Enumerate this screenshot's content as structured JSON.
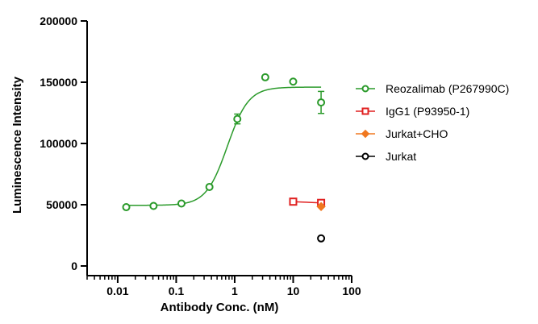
{
  "chart_data": {
    "type": "scatter",
    "xlabel": "Antibody Conc. (nM)",
    "ylabel": "Luminescence Intensity",
    "x_scale": "log",
    "xlim": [
      0.003,
      100
    ],
    "ylim": [
      0,
      200000
    ],
    "x_ticks": [
      0.01,
      0.1,
      1,
      10,
      100
    ],
    "x_tick_labels": [
      "0.01",
      "0.1",
      "1",
      "10",
      "100"
    ],
    "y_ticks": [
      0,
      50000,
      100000,
      150000,
      200000
    ],
    "y_tick_labels": [
      "0",
      "50000",
      "100000",
      "150000",
      "200000"
    ],
    "grid": false,
    "legend_position": "right",
    "series": [
      {
        "name": "Reozalimab (P267990C)",
        "color": "#2a9a2a",
        "marker": "circle",
        "x": [
          0.014,
          0.041,
          0.123,
          0.37,
          1.11,
          3.33,
          10,
          30
        ],
        "y": [
          48000,
          49000,
          51000,
          64500,
          120000,
          154000,
          150500,
          133500
        ],
        "y_err": [
          0,
          0,
          0,
          0,
          4000,
          0,
          0,
          9000
        ],
        "fit": {
          "type": "sigmoid",
          "bottom": 49500,
          "top": 146000,
          "ec50": 0.75,
          "hill": 2.4
        }
      },
      {
        "name": "IgG1 (P93950-1)",
        "color": "#e02020",
        "marker": "square",
        "connect": true,
        "x": [
          10,
          30
        ],
        "y": [
          52500,
          51500
        ],
        "y_err": [
          0,
          0
        ]
      },
      {
        "name": "Jurkat+CHO",
        "color": "#f07820",
        "marker": "diamond",
        "x": [
          30
        ],
        "y": [
          48500
        ],
        "y_err": [
          0
        ]
      },
      {
        "name": "Jurkat",
        "color": "#000000",
        "marker": "circle",
        "x": [
          30
        ],
        "y": [
          22500
        ],
        "y_err": [
          0
        ]
      }
    ]
  }
}
